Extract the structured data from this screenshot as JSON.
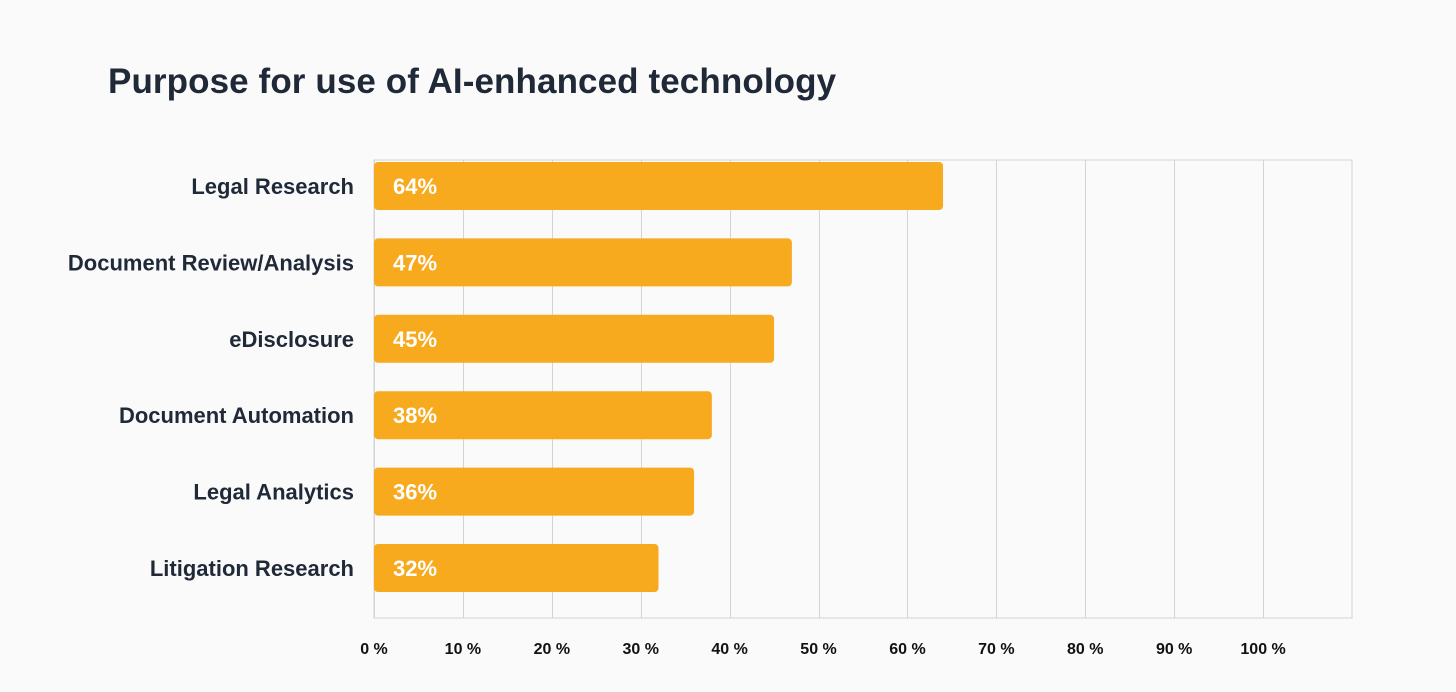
{
  "chart_data": {
    "type": "bar",
    "orientation": "horizontal",
    "title": "Purpose for use of AI-enhanced technology",
    "categories": [
      "Legal Research",
      "Document Review/Analysis",
      "eDisclosure",
      "Document Automation",
      "Legal Analytics",
      "Litigation Research"
    ],
    "values": [
      64,
      47,
      45,
      38,
      36,
      32
    ],
    "value_labels": [
      "64%",
      "47%",
      "45%",
      "38%",
      "36%",
      "32%"
    ],
    "xlim": [
      0,
      110
    ],
    "x_ticks": [
      0,
      10,
      20,
      30,
      40,
      50,
      60,
      70,
      80,
      90,
      100
    ],
    "x_tick_labels": [
      "0 %",
      "10 %",
      "20 %",
      "30 %",
      "40 %",
      "50 %",
      "60 %",
      "70 %",
      "80 %",
      "90 %",
      "100 %"
    ],
    "xlabel": "",
    "ylabel": "",
    "grid": true,
    "bar_color": "#f7aa1e",
    "grid_color": "#d4d4d4",
    "background_color": "#fafafa"
  }
}
